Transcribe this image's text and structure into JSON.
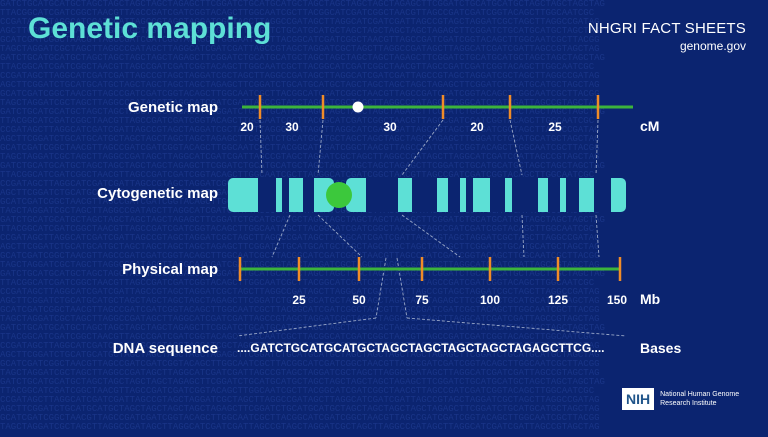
{
  "header": {
    "title": "Genetic mapping",
    "brand_line1": "NHGRI FACT SHEETS",
    "brand_line2": "genome.gov"
  },
  "rows": {
    "genetic_map": "Genetic map",
    "cytogenetic_map": "Cytogenetic map",
    "physical_map": "Physical map",
    "dna_sequence": "DNA sequence"
  },
  "genetic_map": {
    "unit": "cM",
    "interval_labels": [
      "20",
      "30",
      "30",
      "20",
      "25"
    ]
  },
  "physical_map": {
    "unit": "Mb",
    "tick_labels": [
      "25",
      "50",
      "75",
      "100",
      "125",
      "150"
    ]
  },
  "dna": {
    "sequence": "....GATCTGCATGCATGCTAGCTAGCTAGCTAGCTAGAGCTTCG....",
    "unit": "Bases"
  },
  "footer": {
    "logo": "NIH",
    "institute_line1": "National Human Genome",
    "institute_line2": "Research Institute"
  },
  "colors": {
    "background": "#0b2470",
    "title": "#5de0d6",
    "map_line": "#3cb43c",
    "marker": "#f08c28",
    "chromosome": "#5de0d6",
    "band": "#0b2470",
    "centromere": "#3cc83c"
  }
}
